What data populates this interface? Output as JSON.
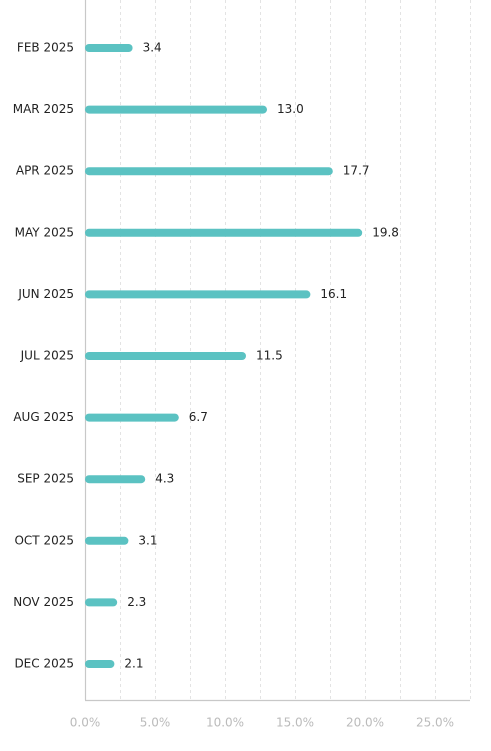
{
  "chart_data": {
    "type": "bar",
    "orientation": "horizontal",
    "categories": [
      "FEB 2025",
      "MAR 2025",
      "APR 2025",
      "MAY 2025",
      "JUN 2025",
      "JUL 2025",
      "AUG 2025",
      "SEP 2025",
      "OCT 2025",
      "NOV 2025",
      "DEC 2025"
    ],
    "values": [
      3.4,
      13.0,
      17.7,
      19.8,
      16.1,
      11.5,
      6.7,
      4.3,
      3.1,
      2.3,
      2.1
    ],
    "value_labels": [
      "3.4",
      "13.0",
      "17.7",
      "19.8",
      "16.1",
      "11.5",
      "6.7",
      "4.3",
      "3.1",
      "2.3",
      "2.1"
    ],
    "x_ticks": [
      0,
      5,
      10,
      15,
      20,
      25
    ],
    "x_tick_labels": [
      "0.0%",
      "5.0%",
      "10.0%",
      "15.0%",
      "20.0%",
      "25.0%"
    ],
    "xlim": [
      0,
      27.5
    ],
    "grid": "vertical dashed",
    "title": "",
    "xlabel": "",
    "ylabel": "",
    "colors": {
      "bar": "#5bc2c2",
      "grid": "#e3e3e3",
      "axis": "#c8c8c8",
      "tick_text": "#bbbbbb",
      "label_text": "#222222"
    }
  }
}
